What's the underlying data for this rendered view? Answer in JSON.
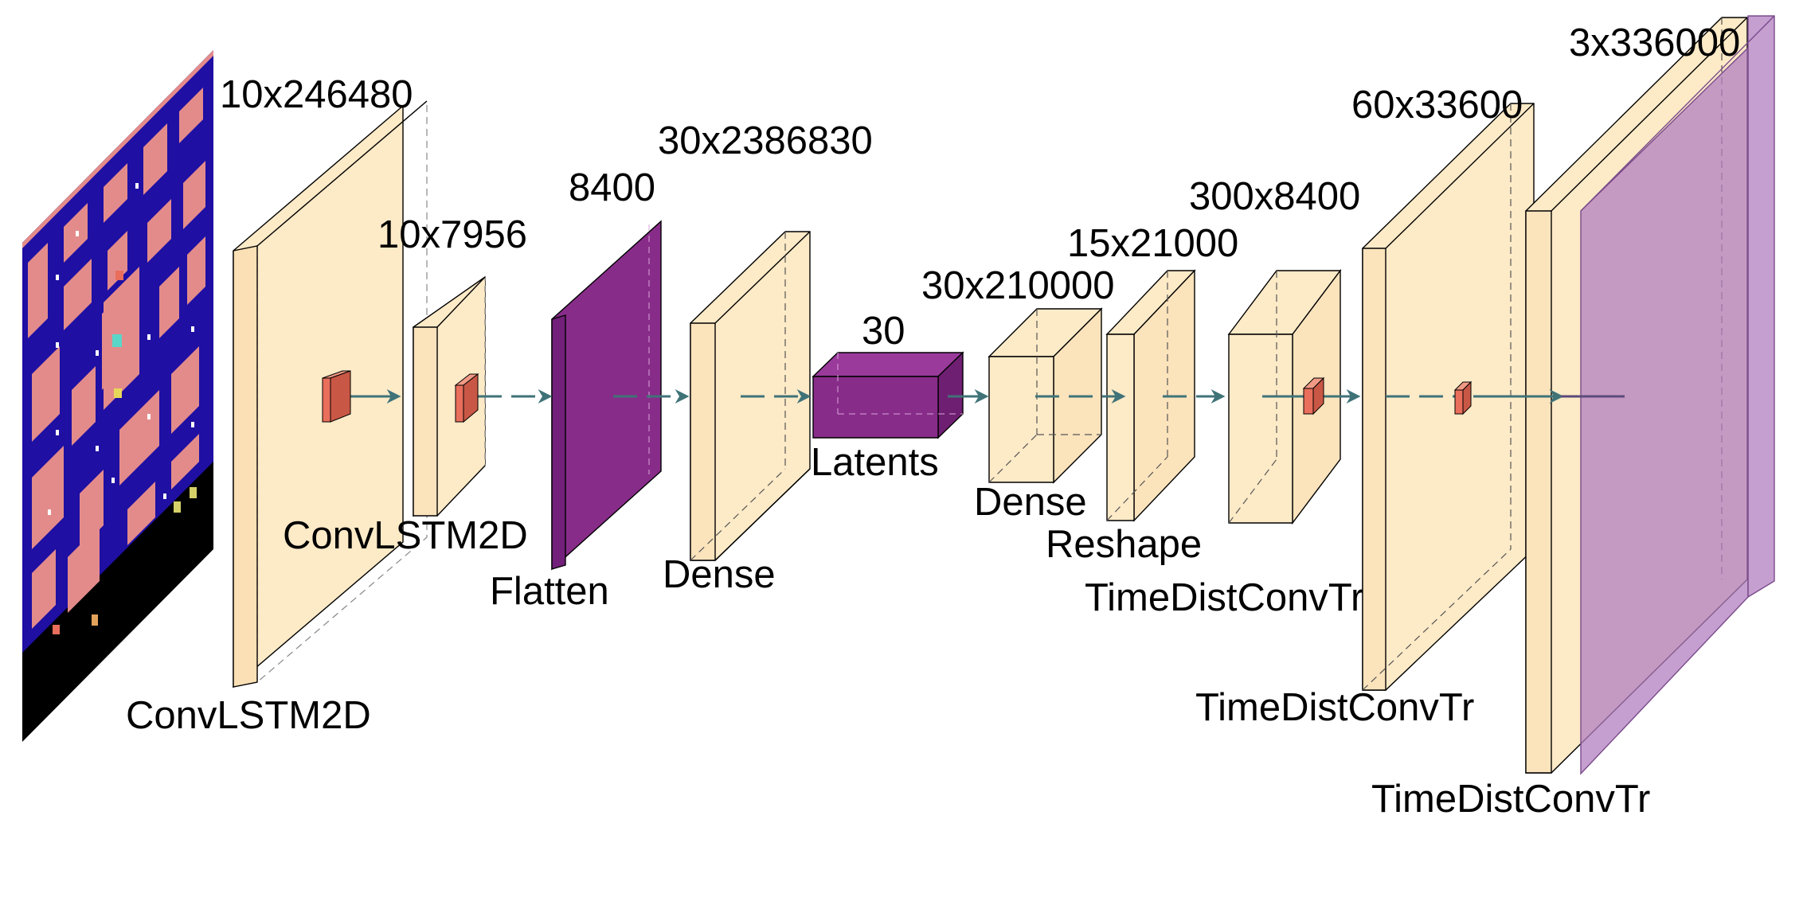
{
  "diagram": {
    "colors": {
      "layer": "#fdeac7",
      "flatten": "#882c89",
      "kernel": "#e96e5c",
      "output": "#b27fc0",
      "arrow": "#3f7378",
      "maze_background": "#1f0fa3",
      "maze_walls": "#e38b8b"
    },
    "input_image": {
      "name": "pacman-game-frame"
    },
    "layers": [
      {
        "id": "conv1",
        "name": "ConvLSTM2D",
        "shape": "10x246480",
        "kind": "layer"
      },
      {
        "id": "conv2",
        "name": "ConvLSTM2D",
        "shape": "10x7956",
        "kind": "layer"
      },
      {
        "id": "flatten",
        "name": "Flatten",
        "shape": "8400",
        "kind": "flatten"
      },
      {
        "id": "dense1",
        "name": "Dense",
        "shape": "30x2386830",
        "kind": "layer"
      },
      {
        "id": "latents",
        "name": "Latents",
        "shape": "30",
        "kind": "flatten"
      },
      {
        "id": "dense2",
        "name": "Dense",
        "shape": "30x210000",
        "kind": "layer"
      },
      {
        "id": "reshape",
        "name": "Reshape",
        "shape": "15x21000",
        "kind": "layer"
      },
      {
        "id": "tdct1",
        "name": "TimeDistConvTr",
        "shape": "300x8400",
        "kind": "layer"
      },
      {
        "id": "tdct2",
        "name": "TimeDistConvTr",
        "shape": "60x33600",
        "kind": "layer"
      },
      {
        "id": "tdct3",
        "name": "TimeDistConvTr",
        "shape": "3x336000",
        "kind": "layer"
      }
    ]
  }
}
